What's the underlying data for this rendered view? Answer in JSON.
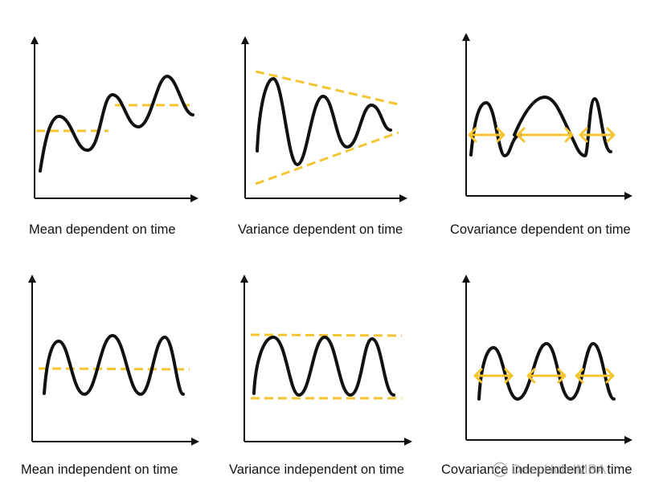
{
  "colors": {
    "curve": "#111111",
    "axis": "#111111",
    "accent": "#F5C431"
  },
  "panels": [
    {
      "caption": "Mean dependent on time"
    },
    {
      "caption": "Variance dependent on time"
    },
    {
      "caption": "Covariance dependent on time"
    },
    {
      "caption": "Mean independent on time"
    },
    {
      "caption": "Variance independent on time"
    },
    {
      "caption": "Covariance independent on time"
    }
  ],
  "watermark": {
    "text": "DeepHub IMBA",
    "icon": "wechat-icon"
  }
}
